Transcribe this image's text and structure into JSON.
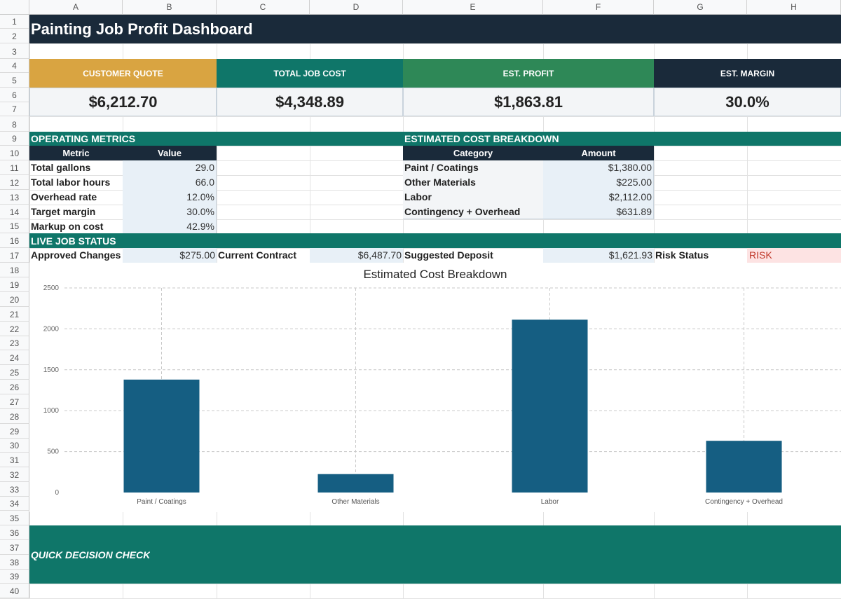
{
  "columns": [
    "A",
    "B",
    "C",
    "D",
    "E",
    "F",
    "G",
    "H"
  ],
  "rows": [
    "1",
    "2",
    "3",
    "4",
    "5",
    "6",
    "7",
    "8",
    "9",
    "10",
    "11",
    "12",
    "13",
    "14",
    "15",
    "16",
    "17",
    "18",
    "19",
    "20",
    "21",
    "22",
    "23",
    "24",
    "25",
    "26",
    "27",
    "28",
    "29",
    "30",
    "31",
    "32",
    "33",
    "34",
    "35",
    "36",
    "37",
    "38",
    "39",
    "40"
  ],
  "title": "Painting Job Profit Dashboard",
  "kpis": [
    {
      "label": "CUSTOMER QUOTE",
      "value": "$6,212.70",
      "color": "#d9a441"
    },
    {
      "label": "TOTAL JOB COST",
      "value": "$4,348.89",
      "color": "#0f7669"
    },
    {
      "label": "EST. PROFIT",
      "value": "$1,863.81",
      "color": "#2e8857"
    },
    {
      "label": "EST. MARGIN",
      "value": "30.0%",
      "color": "#1a2a3a"
    }
  ],
  "operating": {
    "title": "OPERATING METRICS",
    "col_metric": "Metric",
    "col_value": "Value",
    "rows": [
      {
        "label": "Total gallons",
        "value": "29.0"
      },
      {
        "label": "Total labor hours",
        "value": "66.0"
      },
      {
        "label": "Overhead rate",
        "value": "12.0%"
      },
      {
        "label": "Target margin",
        "value": "30.0%"
      },
      {
        "label": "Markup on cost",
        "value": "42.9%"
      }
    ]
  },
  "breakdown": {
    "title": "ESTIMATED COST BREAKDOWN",
    "col_category": "Category",
    "col_amount": "Amount",
    "rows": [
      {
        "label": "Paint / Coatings",
        "value": "$1,380.00"
      },
      {
        "label": "Other Materials",
        "value": "$225.00"
      },
      {
        "label": "Labor",
        "value": "$2,112.00"
      },
      {
        "label": "Contingency + Overhead",
        "value": "$631.89"
      }
    ]
  },
  "live": {
    "title": "LIVE JOB STATUS",
    "approved_label": "Approved Changes",
    "approved_value": "$275.00",
    "contract_label": "Current Contract",
    "contract_value": "$6,487.70",
    "deposit_label": "Suggested Deposit",
    "deposit_value": "$1,621.93",
    "risk_label": "Risk Status",
    "risk_value": "RISK"
  },
  "quick_check": "QUICK DECISION CHECK",
  "colors": {
    "accent": "#0f7669",
    "bar": "#155e82",
    "dark": "#1a2a3a",
    "risk": "#c0392b"
  },
  "chart_data": {
    "type": "bar",
    "title": "Estimated Cost Breakdown",
    "categories": [
      "Paint / Coatings",
      "Other Materials",
      "Labor",
      "Contingency + Overhead"
    ],
    "values": [
      1380,
      225,
      2112,
      631.89
    ],
    "ylim": [
      0,
      2500
    ],
    "yticks": [
      "0",
      "500",
      "1000",
      "1500",
      "2000",
      "2500"
    ],
    "ytick_values": [
      0,
      500,
      1000,
      1500,
      2000,
      2500
    ],
    "grid": true,
    "xlabel": "",
    "ylabel": ""
  }
}
